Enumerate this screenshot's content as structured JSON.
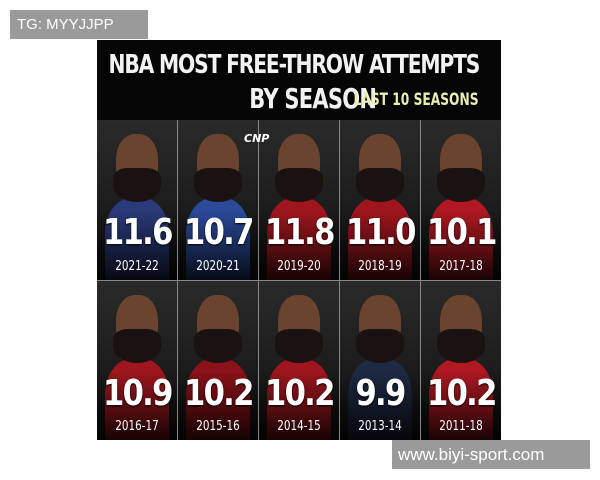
{
  "watermarks": {
    "top_left": "TG: MYYJJPP",
    "bottom_right": "www.biyi-sport.com"
  },
  "header": {
    "title_line1": "NBA MOST FREE-THROW ATTEMPTS",
    "title_line2": "BY SEASON",
    "subtitle": "LAST 10 SEASONS"
  },
  "logo": "CNP",
  "tiles": [
    {
      "value": "11.6",
      "season": "2021-22",
      "color": "#2b3a7a"
    },
    {
      "value": "10.7",
      "season": "2020-21",
      "color": "#2b4a9a"
    },
    {
      "value": "11.8",
      "season": "2019-20",
      "color": "#a0161e"
    },
    {
      "value": "11.0",
      "season": "2018-19",
      "color": "#a0161e"
    },
    {
      "value": "10.1",
      "season": "2017-18",
      "color": "#b01822"
    },
    {
      "value": "10.9",
      "season": "2016-17",
      "color": "#a0161e"
    },
    {
      "value": "10.2",
      "season": "2015-16",
      "color": "#8c1219"
    },
    {
      "value": "10.2",
      "season": "2014-15",
      "color": "#a0161e"
    },
    {
      "value": "9.9",
      "season": "2013-14",
      "color": "#1e2a44"
    },
    {
      "value": "10.2",
      "season": "2011-18",
      "color": "#b01822"
    }
  ]
}
